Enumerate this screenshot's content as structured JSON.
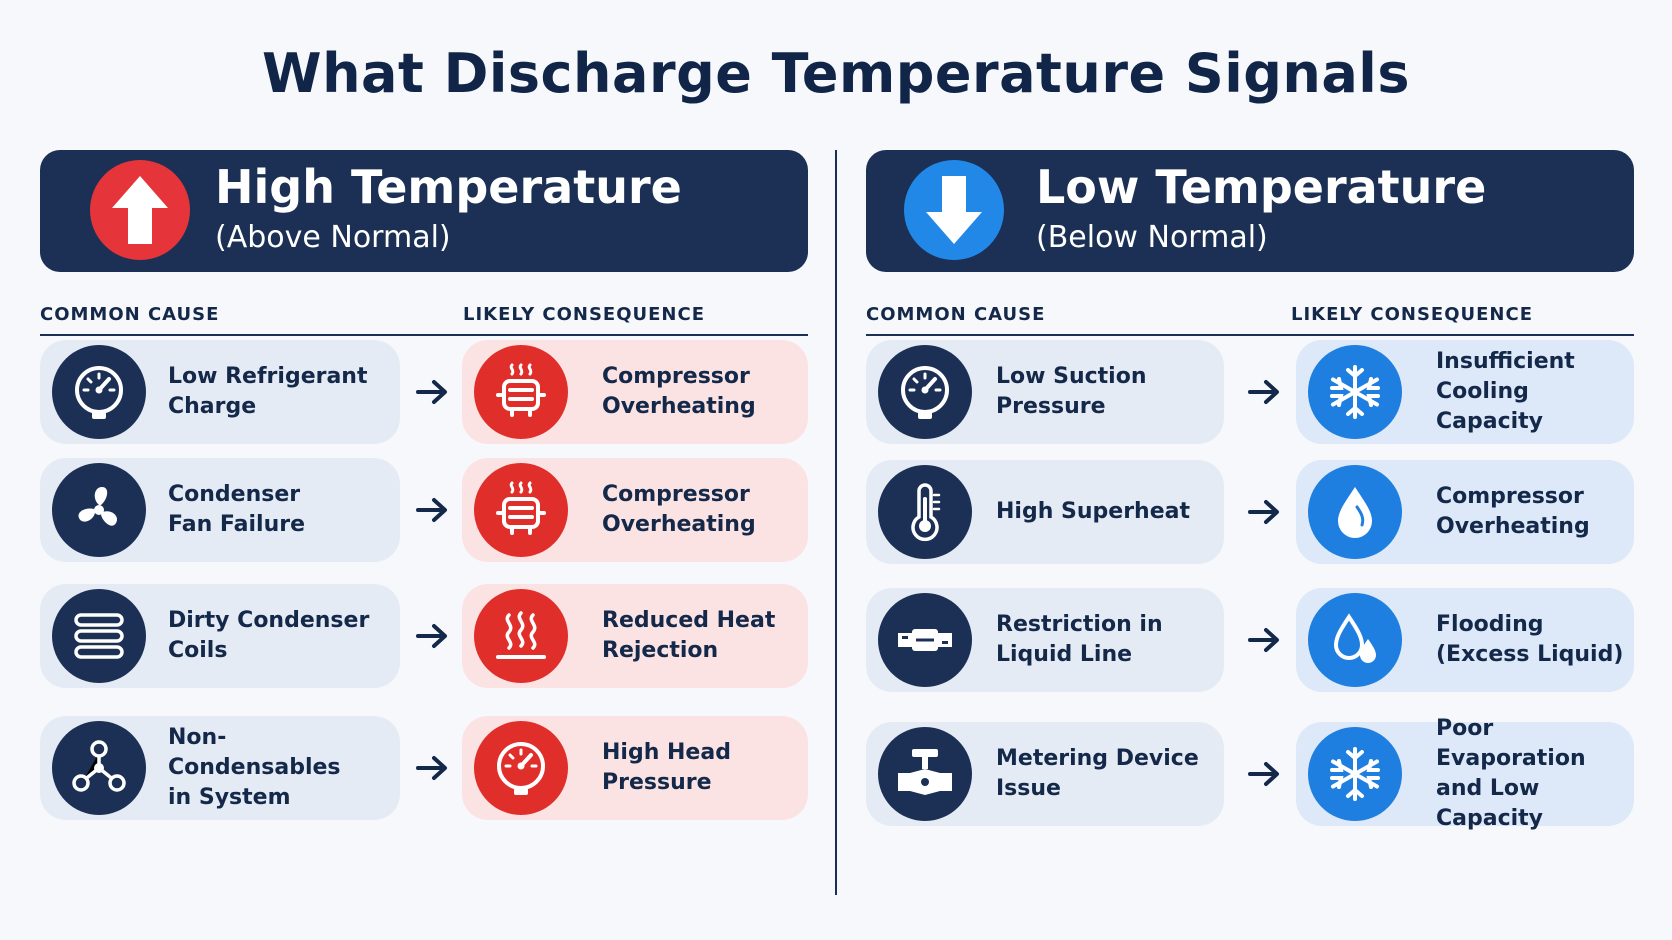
{
  "title": "What Discharge Temperature Signals",
  "colors": {
    "navy": "#1b3054",
    "high_accent": "#e02f2b",
    "low_accent": "#1f7fe0",
    "high_card": "#fbe3e3",
    "low_card": "#dde9f8",
    "cause_card": "#e5ebf4"
  },
  "high": {
    "header_title": "High Temperature",
    "header_subtitle": "(Above Normal)",
    "header_icon": "arrow-up-icon",
    "cause_heading": "COMMON CAUSE",
    "consequence_heading": "LIKELY CONSEQUENCE",
    "rows": [
      {
        "cause_line1": "Low Refrigerant",
        "cause_line2": "Charge",
        "cause_icon": "pressure-gauge-icon",
        "consequence_line1": "Compressor",
        "consequence_line2": "Overheating",
        "consequence_icon": "hot-compressor-icon"
      },
      {
        "cause_line1": "Condenser",
        "cause_line2": "Fan Failure",
        "cause_icon": "fan-icon",
        "consequence_line1": "Compressor",
        "consequence_line2": "Overheating",
        "consequence_icon": "hot-compressor-icon"
      },
      {
        "cause_line1": "Dirty Condenser",
        "cause_line2": "Coils",
        "cause_icon": "coil-icon",
        "consequence_line1": "Reduced Heat",
        "consequence_line2": "Rejection",
        "consequence_icon": "heat-waves-icon"
      },
      {
        "cause_line1": "Non-Condensables",
        "cause_line2": "in System",
        "cause_icon": "molecule-icon",
        "consequence_line1": "High Head",
        "consequence_line2": "Pressure",
        "consequence_icon": "pressure-gauge-icon"
      }
    ]
  },
  "low": {
    "header_title": "Low Temperature",
    "header_subtitle": "(Below Normal)",
    "header_icon": "arrow-down-icon",
    "cause_heading": "COMMON CAUSE",
    "consequence_heading": "LIKELY CONSEQUENCE",
    "rows": [
      {
        "cause_line1": "Low Suction",
        "cause_line2": "Pressure",
        "cause_icon": "pressure-gauge-icon",
        "consequence_line1": "Insufficient",
        "consequence_line2": "Cooling Capacity",
        "consequence_icon": "snowflake-icon"
      },
      {
        "cause_line1": "High Superheat",
        "cause_line2": "",
        "cause_icon": "thermometer-icon",
        "consequence_line1": "Compressor",
        "consequence_line2": "Overheating",
        "consequence_icon": "droplet-icon"
      },
      {
        "cause_line1": "Restriction in",
        "cause_line2": "Liquid Line",
        "cause_icon": "pipe-restriction-icon",
        "consequence_line1": "Flooding",
        "consequence_line2": "(Excess Liquid)",
        "consequence_icon": "droplets-icon"
      },
      {
        "cause_line1": "Metering Device",
        "cause_line2": "Issue",
        "cause_icon": "valve-icon",
        "consequence_line1": "Poor Evaporation",
        "consequence_line2": "and Low Capacity",
        "consequence_icon": "snowflake-icon"
      }
    ]
  }
}
